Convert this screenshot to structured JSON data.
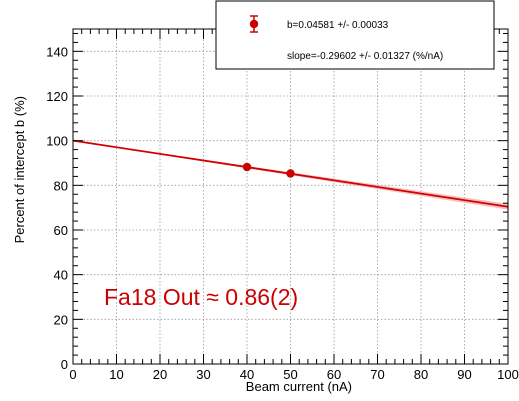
{
  "chart_data": {
    "type": "scatter",
    "xlabel": "Beam current (nA)",
    "ylabel": "Percent of intercept b (%)",
    "xlim": [
      0,
      100
    ],
    "ylim": [
      0,
      150
    ],
    "x_ticks": [
      0,
      10,
      20,
      30,
      40,
      50,
      60,
      70,
      80,
      90,
      100
    ],
    "y_ticks": [
      0,
      20,
      40,
      60,
      80,
      100,
      120,
      140
    ],
    "grid": true,
    "legend_position": "top-right",
    "points": [
      {
        "x": 40,
        "y": 88.2
      },
      {
        "x": 50,
        "y": 85.3
      }
    ],
    "fit": {
      "intercept": 100,
      "slope": -0.29602,
      "slope_error": 0.01327
    },
    "legend": {
      "line1": "b=0.04581 +/- 0.00033",
      "line2": "slope=-0.29602 +/- 0.01327 (%/nA)"
    },
    "annotation": "Fa18 Out ≈ 0.86(2)",
    "colors": {
      "data": "#cc0000",
      "fit": "#d40000",
      "band": "#f4b0b0",
      "annotation": "#cc0000"
    }
  }
}
